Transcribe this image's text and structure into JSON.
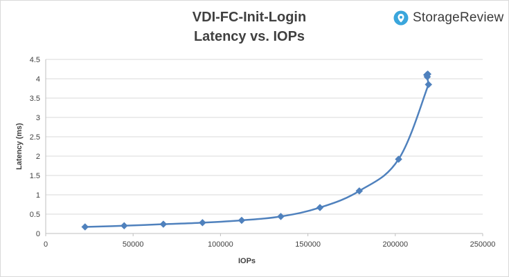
{
  "brand": {
    "name": "StorageReview",
    "logo_icon": "storagereview-logo-icon",
    "accent": "#3aa6dc"
  },
  "chart_data": {
    "type": "scatter",
    "title": "VDI-FC-Init-Login",
    "subtitle": "Latency vs. IOPs",
    "xlabel": "IOPs",
    "ylabel": "Latency (ms)",
    "xlim": [
      0,
      250000
    ],
    "ylim": [
      0,
      4.5
    ],
    "xticks": [
      0,
      50000,
      100000,
      150000,
      200000,
      250000
    ],
    "yticks": [
      0,
      0.5,
      1,
      1.5,
      2,
      2.5,
      3,
      3.5,
      4,
      4.5
    ],
    "grid": "horizontal",
    "legend": "none",
    "series": [
      {
        "color": "#4f81bd",
        "smooth": true,
        "marker": "diamond",
        "points": [
          [
            22500,
            0.17
          ],
          [
            44900,
            0.2
          ],
          [
            67300,
            0.24
          ],
          [
            89700,
            0.28
          ],
          [
            112100,
            0.34
          ],
          [
            134500,
            0.44
          ],
          [
            156900,
            0.67
          ],
          [
            179400,
            1.1
          ],
          [
            201900,
            1.92
          ],
          [
            219000,
            3.85
          ],
          [
            218300,
            4.05
          ],
          [
            218000,
            4.1
          ],
          [
            218600,
            4.12
          ]
        ]
      }
    ]
  }
}
